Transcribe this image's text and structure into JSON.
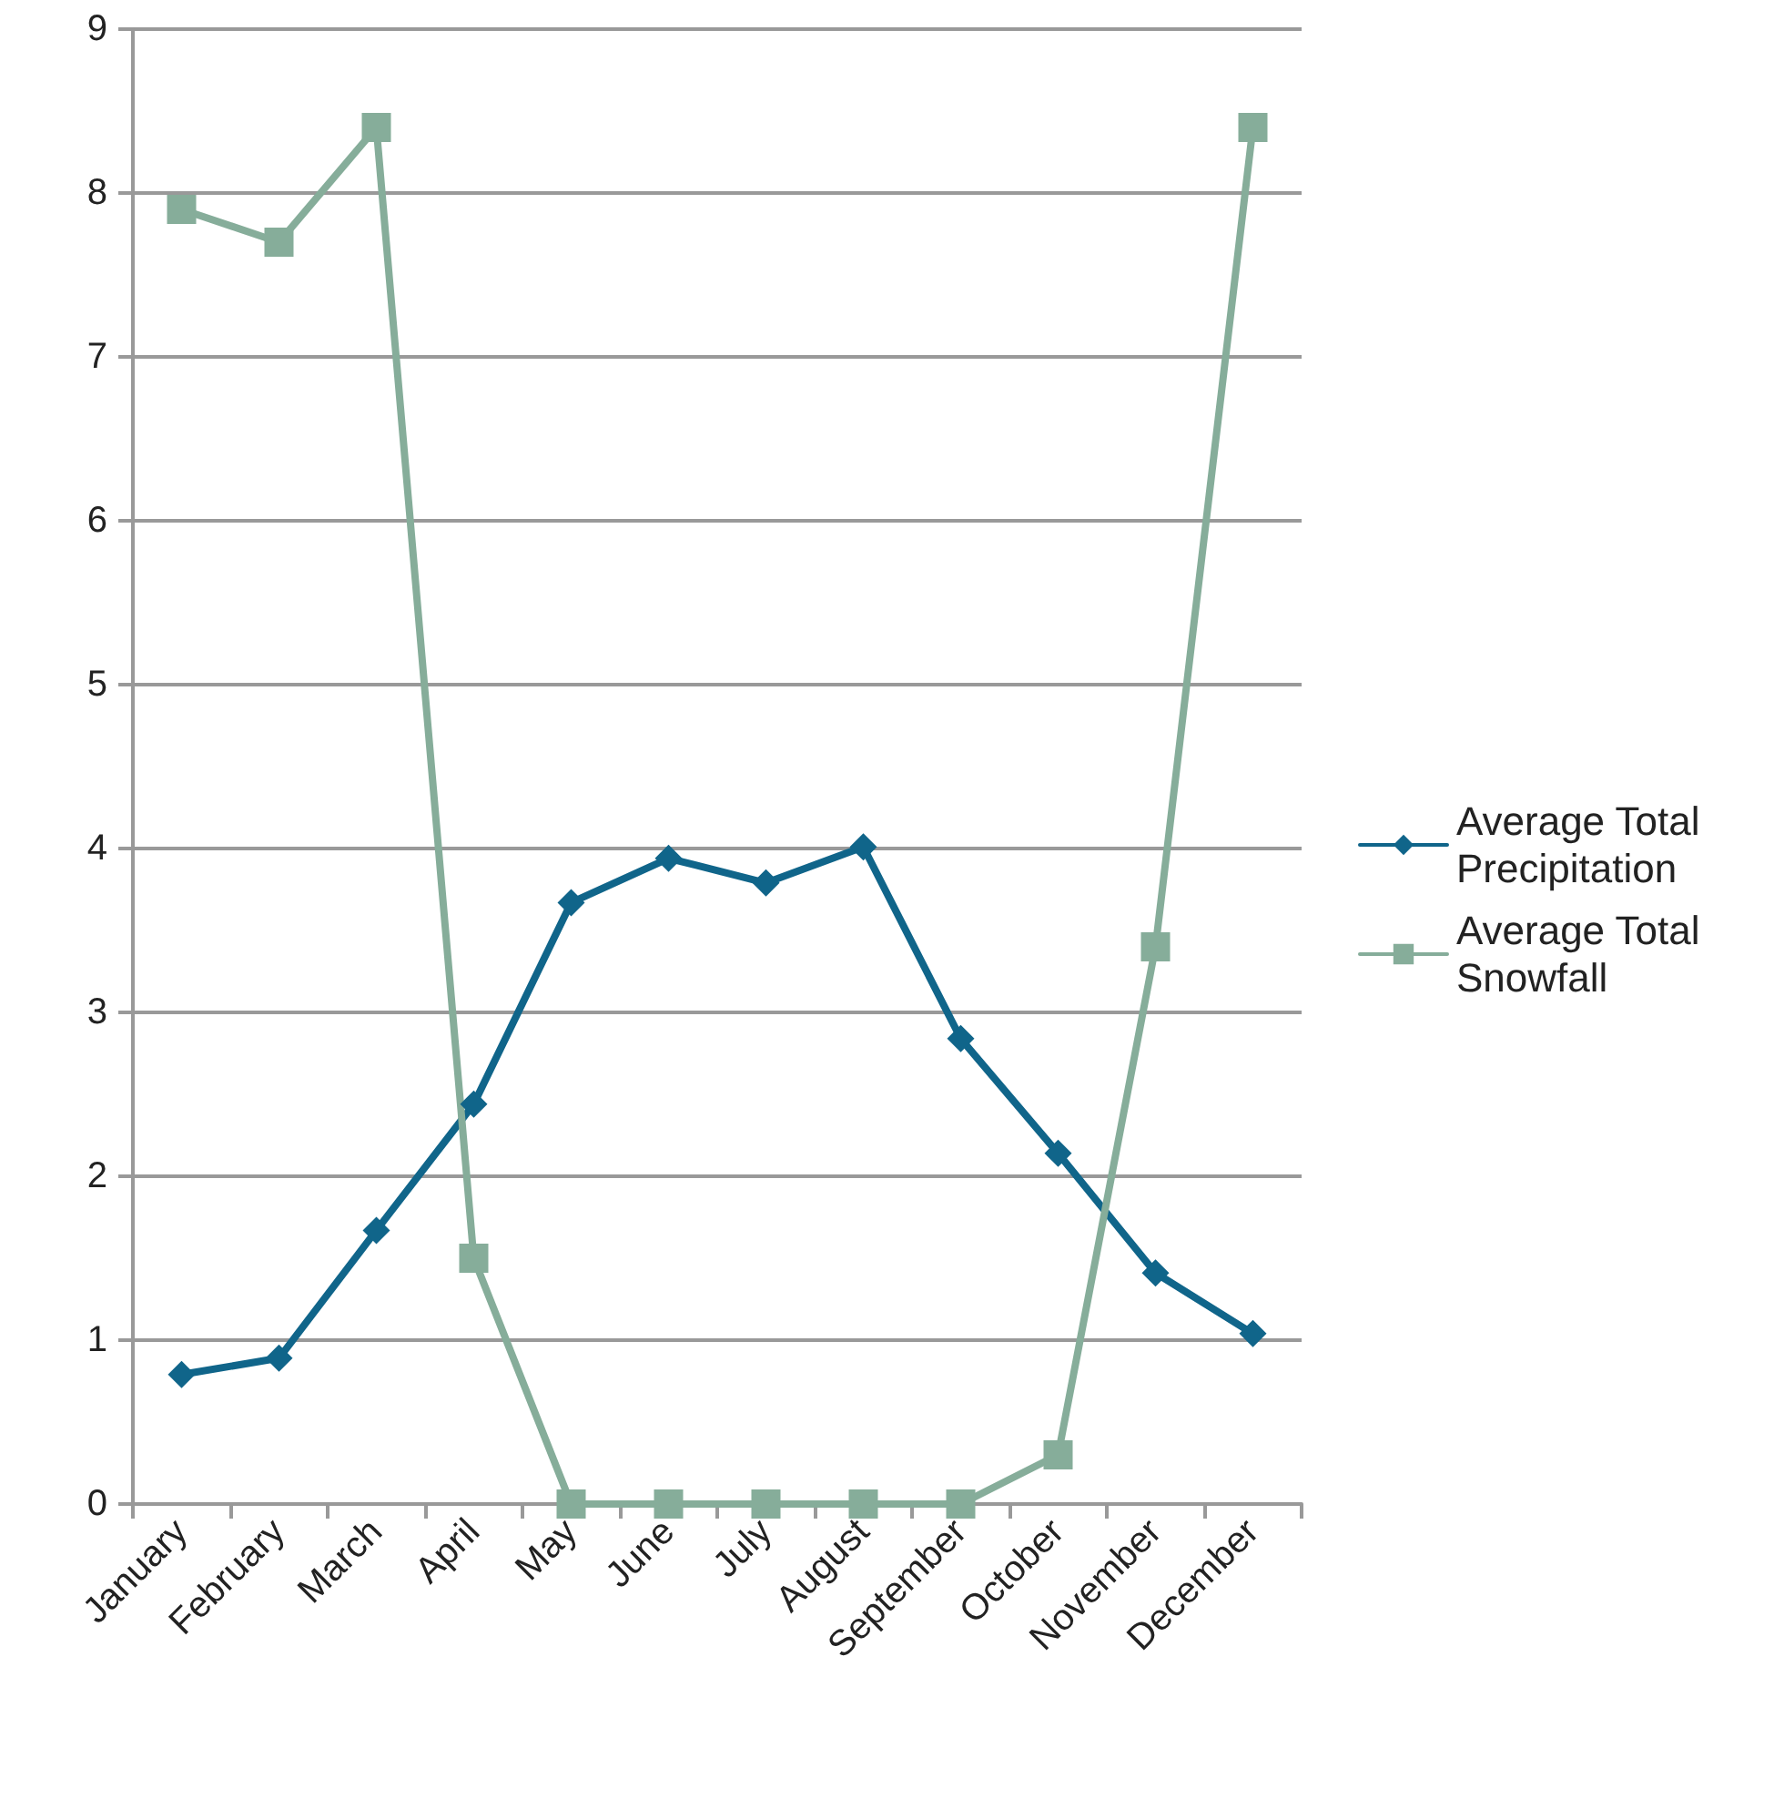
{
  "chart_data": {
    "type": "line",
    "categories": [
      "January",
      "February",
      "March",
      "April",
      "May",
      "June",
      "July",
      "August",
      "September",
      "October",
      "November",
      "December"
    ],
    "series": [
      {
        "name": "Average Total Precipitation",
        "color": "#10658a",
        "marker": "diamond",
        "values": [
          0.79,
          0.89,
          1.67,
          2.44,
          3.67,
          3.94,
          3.79,
          4.01,
          2.84,
          2.14,
          1.41,
          1.04
        ]
      },
      {
        "name": "Average Total Snowfall",
        "color": "#86ad9a",
        "marker": "square",
        "values": [
          7.9,
          7.7,
          8.4,
          1.5,
          0,
          0,
          0,
          0,
          0,
          0.3,
          3.4,
          8.4
        ]
      }
    ],
    "ylim": [
      0,
      9
    ],
    "yticks": [
      0,
      1,
      2,
      3,
      4,
      5,
      6,
      7,
      8,
      9
    ],
    "grid": "y",
    "legend": "right",
    "line_style": "solid"
  }
}
